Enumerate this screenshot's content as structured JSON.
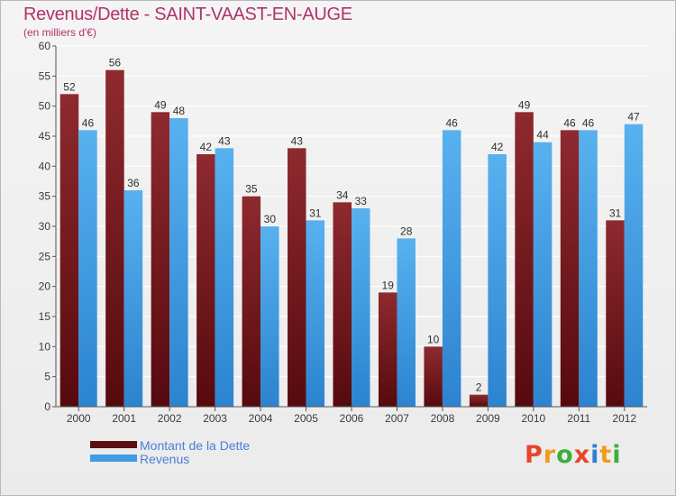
{
  "header": {
    "title": "Revenus/Dette - SAINT-VAAST-EN-AUGE",
    "subtitle": "(en milliers d'€)"
  },
  "chart_data": {
    "type": "bar",
    "title": "Revenus/Dette - SAINT-VAAST-EN-AUGE",
    "subtitle": "(en milliers d'€)",
    "categories": [
      "2000",
      "2001",
      "2002",
      "2003",
      "2004",
      "2005",
      "2006",
      "2007",
      "2008",
      "2009",
      "2010",
      "2011",
      "2012"
    ],
    "series": [
      {
        "name": "Montant de la Dette",
        "color": "#7a1a1e",
        "values": [
          52,
          56,
          49,
          42,
          35,
          43,
          34,
          19,
          10,
          2,
          49,
          46,
          31
        ]
      },
      {
        "name": "Revenus",
        "color": "#3f9be2",
        "values": [
          46,
          36,
          48,
          43,
          30,
          31,
          33,
          28,
          46,
          42,
          44,
          46,
          47
        ]
      }
    ],
    "ylim": [
      0,
      60
    ],
    "yticks": [
      0,
      5,
      10,
      15,
      20,
      25,
      30,
      35,
      40,
      45,
      50,
      55,
      60
    ],
    "grid": true,
    "legend_position": "bottom-left"
  },
  "legend": {
    "items": [
      {
        "label": "Montant de la Dette",
        "color": "#5b0f12"
      },
      {
        "label": "Revenus",
        "color": "#3f9be2"
      }
    ]
  },
  "logo": {
    "text": "Proxiti",
    "colors": [
      "#e8452c",
      "#f29a1d",
      "#3cae3a",
      "#e8452c",
      "#2f7fd0",
      "#f29a1d",
      "#3cae3a"
    ]
  }
}
